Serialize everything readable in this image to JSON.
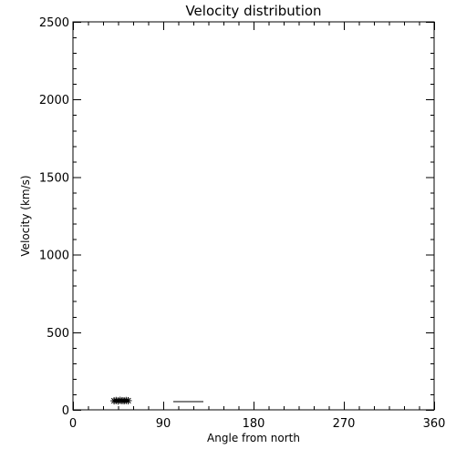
{
  "chart_data": {
    "type": "scatter",
    "title": "Velocity distribution",
    "xlabel": "Angle from north",
    "ylabel": "Velocity (km/s)",
    "xlim": [
      0,
      360
    ],
    "ylim": [
      0,
      2500
    ],
    "x_ticks": [
      0,
      90,
      180,
      270,
      360
    ],
    "y_ticks": [
      0,
      500,
      1000,
      1500,
      2000,
      2500
    ],
    "x_tick_labels": [
      "0",
      "90",
      "180",
      "270",
      "360"
    ],
    "y_tick_labels": [
      "0",
      "500",
      "1000",
      "1500",
      "2000",
      "2500"
    ],
    "x_minor_step": 15,
    "y_minor_step": 100,
    "grid": false,
    "series": [
      {
        "marker": "asterisk",
        "points": [
          {
            "x": 41,
            "y": 58
          },
          {
            "x": 43,
            "y": 60
          },
          {
            "x": 45,
            "y": 57
          },
          {
            "x": 47,
            "y": 61
          },
          {
            "x": 49,
            "y": 59
          },
          {
            "x": 51,
            "y": 58
          },
          {
            "x": 53,
            "y": 60
          },
          {
            "x": 55,
            "y": 59
          }
        ]
      },
      {
        "marker": "line",
        "x": [
          100,
          130
        ],
        "y": [
          57,
          57
        ]
      }
    ]
  }
}
